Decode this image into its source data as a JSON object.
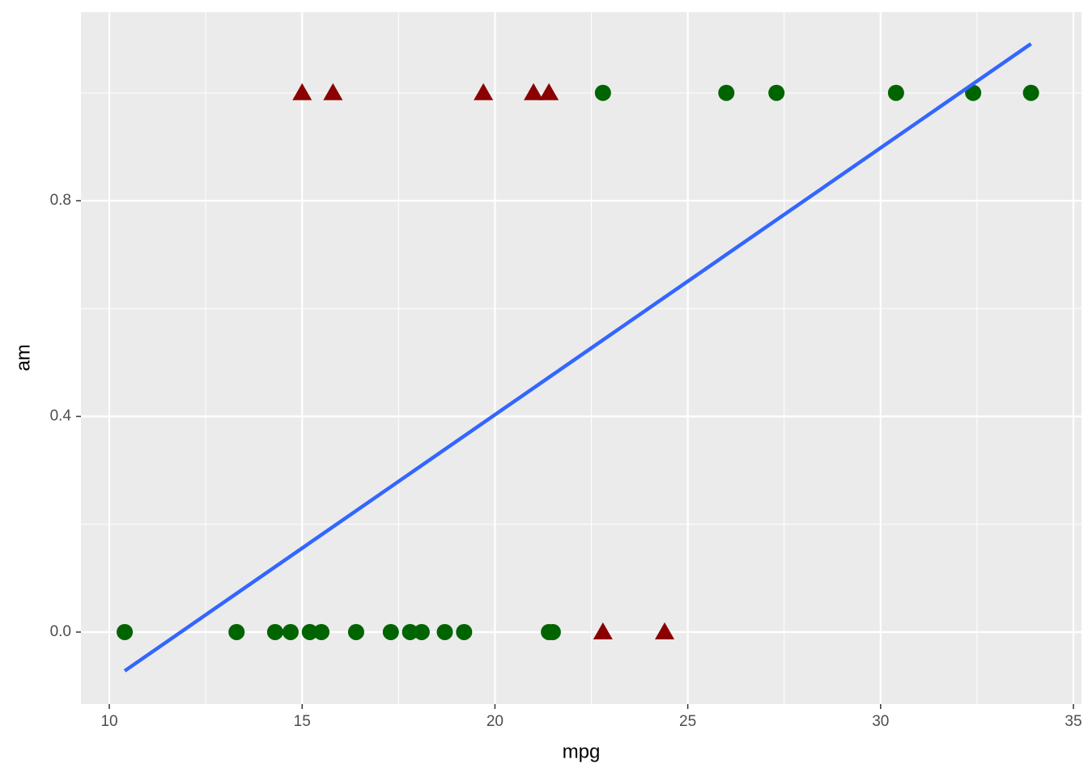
{
  "chart_data": {
    "type": "scatter",
    "x_label": "mpg",
    "y_label": "am",
    "xlim": [
      9.265,
      35.21
    ],
    "ylim": [
      -0.1336,
      1.1497
    ],
    "xticks": [
      10,
      15,
      20,
      25,
      30,
      35
    ],
    "yticks": [
      {
        "value": 0,
        "label": "0.0"
      },
      0.4,
      0.8
    ],
    "grid": true,
    "series": [
      {
        "color": "#006400",
        "shape": "circle",
        "x": [
          22.8,
          26.0,
          27.3,
          30.4,
          32.4,
          33.9,
          10.4,
          13.3,
          14.3,
          14.7,
          15.2,
          15.5,
          16.4,
          17.3,
          17.8,
          18.1,
          18.7,
          19.2,
          21.4,
          21.5
        ],
        "values": [
          1,
          1,
          1,
          1,
          1,
          1,
          0,
          0,
          0,
          0,
          0,
          0,
          0,
          0,
          0,
          0,
          0,
          0,
          0,
          0
        ]
      },
      {
        "color": "#8b0000",
        "shape": "triangle",
        "x": [
          15.0,
          15.8,
          19.7,
          21.0,
          21.4,
          22.8,
          24.4
        ],
        "values": [
          1,
          1,
          1,
          1,
          1,
          0,
          0
        ]
      }
    ],
    "fit_line": {
      "color": "#3366ff",
      "x": [
        10.4,
        33.9
      ],
      "values": [
        -0.072,
        1.091
      ]
    }
  }
}
